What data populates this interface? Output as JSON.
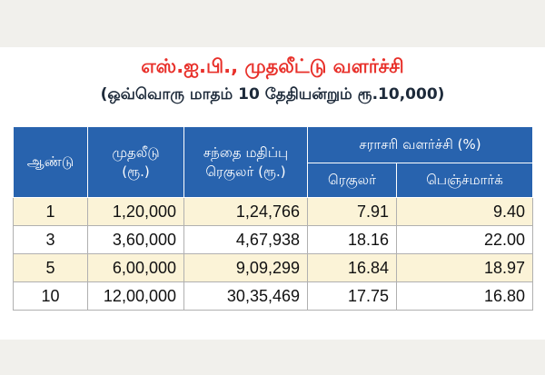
{
  "title": "எஸ்.ஐ.பி., முதலீட்டு வளர்ச்சி",
  "subtitle": "(ஒவ்வொரு மாதம் 10 தேதியன்றும் ரூ.10,000)",
  "table": {
    "headers": {
      "year": "ஆண்டு",
      "investment_line1": "முதலீடு",
      "investment_line2": "(ரூ.)",
      "market_line1": "சந்தை மதிப்பு",
      "market_line2": "ரெகுலர் (ரூ.)",
      "growth_group": "சராசரி வளர்ச்சி (%)",
      "regular": "ரெகுலர்",
      "benchmark": "பெஞ்ச்மார்க்"
    },
    "rows": [
      {
        "year": "1",
        "investment": "1,20,000",
        "market_value": "1,24,766",
        "regular": "7.91",
        "benchmark": "9.40"
      },
      {
        "year": "3",
        "investment": "3,60,000",
        "market_value": "4,67,938",
        "regular": "18.16",
        "benchmark": "22.00"
      },
      {
        "year": "5",
        "investment": "6,00,000",
        "market_value": "9,09,299",
        "regular": "16.84",
        "benchmark": "18.97"
      },
      {
        "year": "10",
        "investment": "12,00,000",
        "market_value": "30,35,469",
        "regular": "17.75",
        "benchmark": "16.80"
      }
    ]
  },
  "colors": {
    "title": "#e8302a",
    "header_bg": "#2863ae",
    "row_highlight": "#fbf3d7"
  }
}
